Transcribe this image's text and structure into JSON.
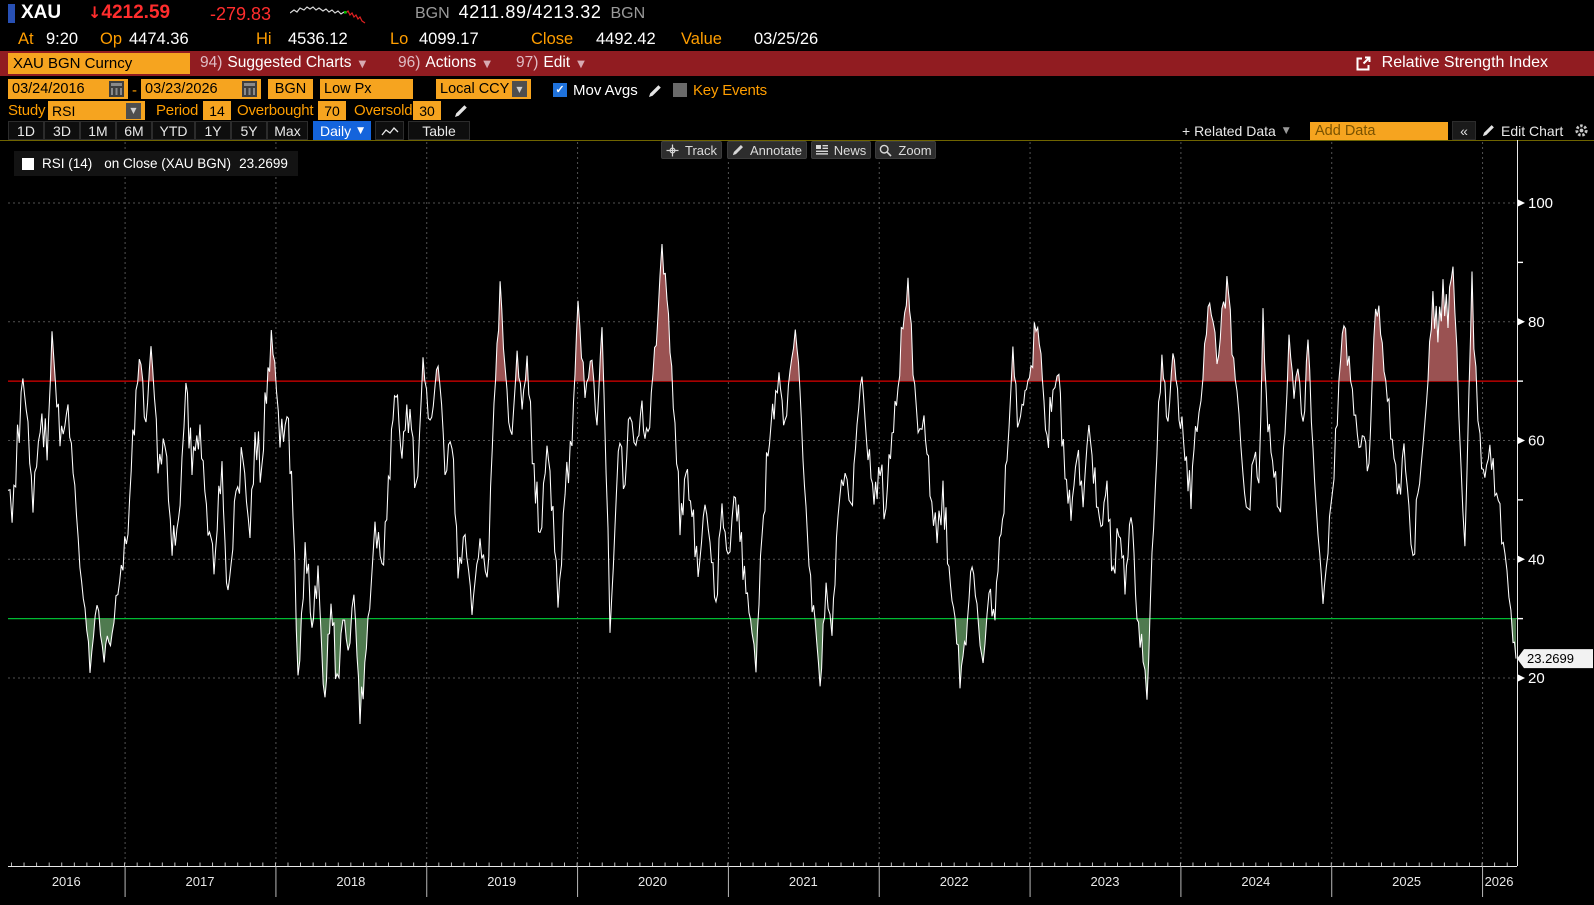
{
  "top_bar": {
    "ticker": "XAU",
    "direction_arrow": "↓",
    "last_price": "4212.59",
    "change": "-279.83",
    "quote_src_left": "BGN",
    "bid_ask": "4211.89/4213.32",
    "quote_src_right": "BGN"
  },
  "summary_bar": {
    "items": [
      {
        "label": "At",
        "value": "9:20"
      },
      {
        "label": "Op",
        "value": "4474.36"
      },
      {
        "label": "Hi",
        "value": "4536.12"
      },
      {
        "label": "Lo",
        "value": "4099.17"
      },
      {
        "label": "Close",
        "value": "4492.42"
      },
      {
        "label": "Value",
        "value": "03/25/26"
      }
    ]
  },
  "menu_bar": {
    "security": "XAU BGN Curncy",
    "items": [
      {
        "key": "94)",
        "label": "Suggested Charts"
      },
      {
        "key": "96)",
        "label": "Actions"
      },
      {
        "key": "97)",
        "label": "Edit"
      }
    ],
    "title": "Relative Strength Index"
  },
  "settings_bar": {
    "date_from": "03/24/2016",
    "separator": "-",
    "date_to": "03/23/2026",
    "source": "BGN",
    "price_field": "Low Px",
    "currency": "Local CCY",
    "mov_avgs": {
      "label": "Mov Avgs",
      "checked": true
    },
    "key_events": {
      "label": "Key Events",
      "checked": false
    }
  },
  "study_bar": {
    "study_label": "Study",
    "study": "RSI",
    "period_label": "Period",
    "period": "14",
    "overbought_label": "Overbought",
    "overbought": "70",
    "oversold_label": "Oversold",
    "oversold": "30"
  },
  "toolbar": {
    "ranges": [
      "1D",
      "3D",
      "1M",
      "6M",
      "YTD",
      "1Y",
      "5Y",
      "Max"
    ],
    "frequency": "Daily",
    "table": "Table",
    "related_data": "+ Related Data",
    "add_data_placeholder": "Add Data",
    "collapse": "«",
    "edit_chart": "Edit Chart"
  },
  "overlay_buttons": [
    {
      "icon": "track-icon",
      "label": "Track"
    },
    {
      "icon": "annotate-icon",
      "label": "Annotate"
    },
    {
      "icon": "news-icon",
      "label": "News"
    },
    {
      "icon": "zoom-icon",
      "label": "Zoom"
    }
  ],
  "sparkline": {
    "white": [
      [
        0,
        11
      ],
      [
        4,
        8
      ],
      [
        7,
        10
      ],
      [
        10,
        6
      ],
      [
        14,
        8
      ],
      [
        17,
        5
      ],
      [
        20,
        7
      ],
      [
        23,
        5
      ],
      [
        26,
        8
      ],
      [
        29,
        6
      ],
      [
        33,
        9
      ],
      [
        36,
        7
      ],
      [
        39,
        10
      ],
      [
        42,
        8
      ],
      [
        45,
        11
      ],
      [
        48,
        9
      ],
      [
        51,
        12
      ],
      [
        54,
        10
      ]
    ],
    "green_dot": [
      55,
      10
    ],
    "red": [
      [
        56,
        11
      ],
      [
        58,
        9
      ],
      [
        60,
        13
      ],
      [
        62,
        11
      ],
      [
        64,
        15
      ],
      [
        66,
        13
      ],
      [
        68,
        17
      ],
      [
        70,
        15
      ],
      [
        72,
        19
      ],
      [
        75,
        21
      ]
    ]
  },
  "chart_data": {
    "type": "line",
    "legend": {
      "study": "RSI (14)",
      "on": "on Close (XAU BGN)",
      "value": "23.2699"
    },
    "last_value": 23.2699,
    "overbought": 70,
    "oversold": 30,
    "ylim": [
      0,
      100
    ],
    "yticks": [
      20,
      40,
      60,
      80,
      100
    ],
    "minor_yticks": [
      30,
      50,
      70,
      90
    ],
    "x_start_year": 2016.227,
    "x_end_year": 2026.225,
    "years": [
      2016,
      2017,
      2018,
      2019,
      2020,
      2021,
      2022,
      2023,
      2024,
      2025,
      2026
    ],
    "grid": true,
    "legend_position": "top-left",
    "colors": {
      "line": "#ffffff",
      "overbought_line": "#dd0000",
      "oversold_line": "#00bb33",
      "overbought_fill": "#9a5252",
      "oversold_fill": "#4f7a4f",
      "grid": "#525252",
      "axis": "#e8e8e8"
    },
    "series": [
      {
        "name": "RSI (14) on Close (XAU BGN)",
        "points": [
          [
            0,
            53
          ],
          [
            0.0027,
            47
          ],
          [
            0.0099,
            71
          ],
          [
            0.0166,
            49
          ],
          [
            0.0225,
            64
          ],
          [
            0.0259,
            58
          ],
          [
            0.0292,
            77
          ],
          [
            0.0345,
            60
          ],
          [
            0.0398,
            65
          ],
          [
            0.0477,
            40
          ],
          [
            0.0544,
            22
          ],
          [
            0.059,
            33
          ],
          [
            0.0637,
            24
          ],
          [
            0.069,
            27
          ],
          [
            0.0729,
            35
          ],
          [
            0.0796,
            45
          ],
          [
            0.0849,
            68
          ],
          [
            0.0882,
            74
          ],
          [
            0.0915,
            62
          ],
          [
            0.0948,
            77
          ],
          [
            0.0995,
            55
          ],
          [
            0.1041,
            60
          ],
          [
            0.1088,
            42
          ],
          [
            0.1141,
            48
          ],
          [
            0.118,
            70
          ],
          [
            0.122,
            55
          ],
          [
            0.1273,
            62
          ],
          [
            0.1326,
            45
          ],
          [
            0.1366,
            38
          ],
          [
            0.1419,
            55
          ],
          [
            0.1459,
            34
          ],
          [
            0.1512,
            52
          ],
          [
            0.1558,
            58
          ],
          [
            0.1605,
            45
          ],
          [
            0.1638,
            60
          ],
          [
            0.1684,
            55
          ],
          [
            0.1724,
            72
          ],
          [
            0.1757,
            76
          ],
          [
            0.1804,
            60
          ],
          [
            0.185,
            65
          ],
          [
            0.189,
            48
          ],
          [
            0.1923,
            19
          ],
          [
            0.197,
            42
          ],
          [
            0.2016,
            28
          ],
          [
            0.2056,
            38
          ],
          [
            0.2102,
            16
          ],
          [
            0.2142,
            32
          ],
          [
            0.2182,
            20
          ],
          [
            0.2221,
            30
          ],
          [
            0.2255,
            24
          ],
          [
            0.2294,
            35
          ],
          [
            0.2334,
            13
          ],
          [
            0.2387,
            30
          ],
          [
            0.2434,
            45
          ],
          [
            0.248,
            38
          ],
          [
            0.2533,
            55
          ],
          [
            0.2573,
            68
          ],
          [
            0.2613,
            58
          ],
          [
            0.2666,
            64
          ],
          [
            0.2706,
            52
          ],
          [
            0.2752,
            73
          ],
          [
            0.2799,
            62
          ],
          [
            0.2852,
            74
          ],
          [
            0.2898,
            55
          ],
          [
            0.2944,
            60
          ],
          [
            0.2984,
            38
          ],
          [
            0.3031,
            45
          ],
          [
            0.3077,
            31
          ],
          [
            0.313,
            42
          ],
          [
            0.3177,
            36
          ],
          [
            0.3223,
            65
          ],
          [
            0.3263,
            86
          ],
          [
            0.3309,
            68
          ],
          [
            0.3342,
            62
          ],
          [
            0.3376,
            74
          ],
          [
            0.3409,
            66
          ],
          [
            0.3442,
            73
          ],
          [
            0.3488,
            55
          ],
          [
            0.3528,
            43
          ],
          [
            0.3574,
            58
          ],
          [
            0.3614,
            48
          ],
          [
            0.3647,
            33
          ],
          [
            0.3694,
            52
          ],
          [
            0.374,
            60
          ],
          [
            0.378,
            84
          ],
          [
            0.3826,
            68
          ],
          [
            0.3873,
            74
          ],
          [
            0.3906,
            62
          ],
          [
            0.3939,
            80
          ],
          [
            0.3966,
            55
          ],
          [
            0.3992,
            28
          ],
          [
            0.4025,
            45
          ],
          [
            0.4058,
            60
          ],
          [
            0.4092,
            52
          ],
          [
            0.4125,
            65
          ],
          [
            0.4164,
            58
          ],
          [
            0.4204,
            66
          ],
          [
            0.4244,
            60
          ],
          [
            0.4277,
            72
          ],
          [
            0.431,
            80
          ],
          [
            0.4337,
            92
          ],
          [
            0.437,
            85
          ],
          [
            0.439,
            76
          ],
          [
            0.4423,
            62
          ],
          [
            0.4456,
            45
          ],
          [
            0.4496,
            55
          ],
          [
            0.4536,
            48
          ],
          [
            0.4576,
            38
          ],
          [
            0.4622,
            50
          ],
          [
            0.4655,
            42
          ],
          [
            0.4695,
            32
          ],
          [
            0.4735,
            48
          ],
          [
            0.4775,
            40
          ],
          [
            0.4814,
            52
          ],
          [
            0.4854,
            44
          ],
          [
            0.4894,
            35
          ],
          [
            0.4934,
            28
          ],
          [
            0.496,
            22
          ],
          [
            0.5,
            45
          ],
          [
            0.504,
            58
          ],
          [
            0.508,
            65
          ],
          [
            0.5113,
            71
          ],
          [
            0.5153,
            63
          ],
          [
            0.5186,
            72
          ],
          [
            0.5232,
            77
          ],
          [
            0.5272,
            58
          ],
          [
            0.5312,
            40
          ],
          [
            0.5352,
            30
          ],
          [
            0.5385,
            18
          ],
          [
            0.5425,
            35
          ],
          [
            0.5464,
            28
          ],
          [
            0.5504,
            48
          ],
          [
            0.5551,
            55
          ],
          [
            0.559,
            48
          ],
          [
            0.563,
            62
          ],
          [
            0.5663,
            71
          ],
          [
            0.5703,
            58
          ],
          [
            0.5743,
            50
          ],
          [
            0.5783,
            55
          ],
          [
            0.5822,
            48
          ],
          [
            0.5862,
            60
          ],
          [
            0.5902,
            68
          ],
          [
            0.5935,
            80
          ],
          [
            0.5968,
            86
          ],
          [
            0.6001,
            72
          ],
          [
            0.6035,
            60
          ],
          [
            0.6074,
            65
          ],
          [
            0.6114,
            52
          ],
          [
            0.6161,
            44
          ],
          [
            0.62,
            52
          ],
          [
            0.624,
            38
          ],
          [
            0.628,
            30
          ],
          [
            0.6313,
            19
          ],
          [
            0.6353,
            26
          ],
          [
            0.6393,
            40
          ],
          [
            0.6426,
            32
          ],
          [
            0.6466,
            21
          ],
          [
            0.6505,
            35
          ],
          [
            0.6545,
            30
          ],
          [
            0.6585,
            45
          ],
          [
            0.6625,
            58
          ],
          [
            0.6664,
            75
          ],
          [
            0.6704,
            62
          ],
          [
            0.6744,
            68
          ],
          [
            0.6784,
            72
          ],
          [
            0.6817,
            79
          ],
          [
            0.685,
            74
          ],
          [
            0.689,
            60
          ],
          [
            0.693,
            68
          ],
          [
            0.6969,
            72
          ],
          [
            0.7009,
            55
          ],
          [
            0.7049,
            48
          ],
          [
            0.7089,
            58
          ],
          [
            0.7129,
            50
          ],
          [
            0.7168,
            62
          ],
          [
            0.7208,
            54
          ],
          [
            0.7248,
            44
          ],
          [
            0.7288,
            52
          ],
          [
            0.7328,
            38
          ],
          [
            0.7367,
            45
          ],
          [
            0.7407,
            35
          ],
          [
            0.7447,
            48
          ],
          [
            0.7487,
            30
          ],
          [
            0.7527,
            24
          ],
          [
            0.7553,
            17
          ],
          [
            0.7586,
            40
          ],
          [
            0.7619,
            58
          ],
          [
            0.7652,
            74
          ],
          [
            0.7692,
            62
          ],
          [
            0.7725,
            76
          ],
          [
            0.7765,
            65
          ],
          [
            0.7805,
            58
          ],
          [
            0.7845,
            50
          ],
          [
            0.7885,
            62
          ],
          [
            0.7924,
            70
          ],
          [
            0.7958,
            84
          ],
          [
            0.7991,
            79
          ],
          [
            0.8017,
            72
          ],
          [
            0.805,
            83
          ],
          [
            0.8083,
            87
          ],
          [
            0.8117,
            75
          ],
          [
            0.815,
            68
          ],
          [
            0.8189,
            55
          ],
          [
            0.8223,
            48
          ],
          [
            0.8262,
            58
          ],
          [
            0.8295,
            52
          ],
          [
            0.8322,
            81
          ],
          [
            0.8355,
            62
          ],
          [
            0.8395,
            55
          ],
          [
            0.8428,
            48
          ],
          [
            0.8468,
            60
          ],
          [
            0.8495,
            77
          ],
          [
            0.8528,
            68
          ],
          [
            0.8554,
            73
          ],
          [
            0.8588,
            62
          ],
          [
            0.8621,
            78
          ],
          [
            0.8654,
            58
          ],
          [
            0.8687,
            45
          ],
          [
            0.872,
            32
          ],
          [
            0.8753,
            42
          ],
          [
            0.8793,
            55
          ],
          [
            0.8826,
            70
          ],
          [
            0.8859,
            80
          ],
          [
            0.8893,
            73
          ],
          [
            0.8926,
            65
          ],
          [
            0.8959,
            58
          ],
          [
            0.8992,
            62
          ],
          [
            0.9025,
            55
          ],
          [
            0.9058,
            78
          ],
          [
            0.9091,
            82
          ],
          [
            0.9125,
            72
          ],
          [
            0.9158,
            66
          ],
          [
            0.9191,
            58
          ],
          [
            0.9224,
            52
          ],
          [
            0.9257,
            60
          ],
          [
            0.929,
            48
          ],
          [
            0.9317,
            40
          ],
          [
            0.935,
            52
          ],
          [
            0.9383,
            58
          ],
          [
            0.9416,
            70
          ],
          [
            0.9449,
            84
          ],
          [
            0.9482,
            78
          ],
          [
            0.9516,
            86
          ],
          [
            0.9549,
            80
          ],
          [
            0.9582,
            88
          ],
          [
            0.9608,
            75
          ],
          [
            0.9635,
            55
          ],
          [
            0.9661,
            41
          ],
          [
            0.9688,
            68
          ],
          [
            0.9708,
            87
          ],
          [
            0.9734,
            72
          ],
          [
            0.9761,
            60
          ],
          [
            0.9794,
            55
          ],
          [
            0.9827,
            58
          ],
          [
            0.986,
            52
          ],
          [
            0.9894,
            48
          ],
          [
            0.9927,
            42
          ],
          [
            0.9953,
            35
          ],
          [
            0.998,
            27
          ],
          [
            1,
            23.2699
          ]
        ]
      }
    ]
  }
}
